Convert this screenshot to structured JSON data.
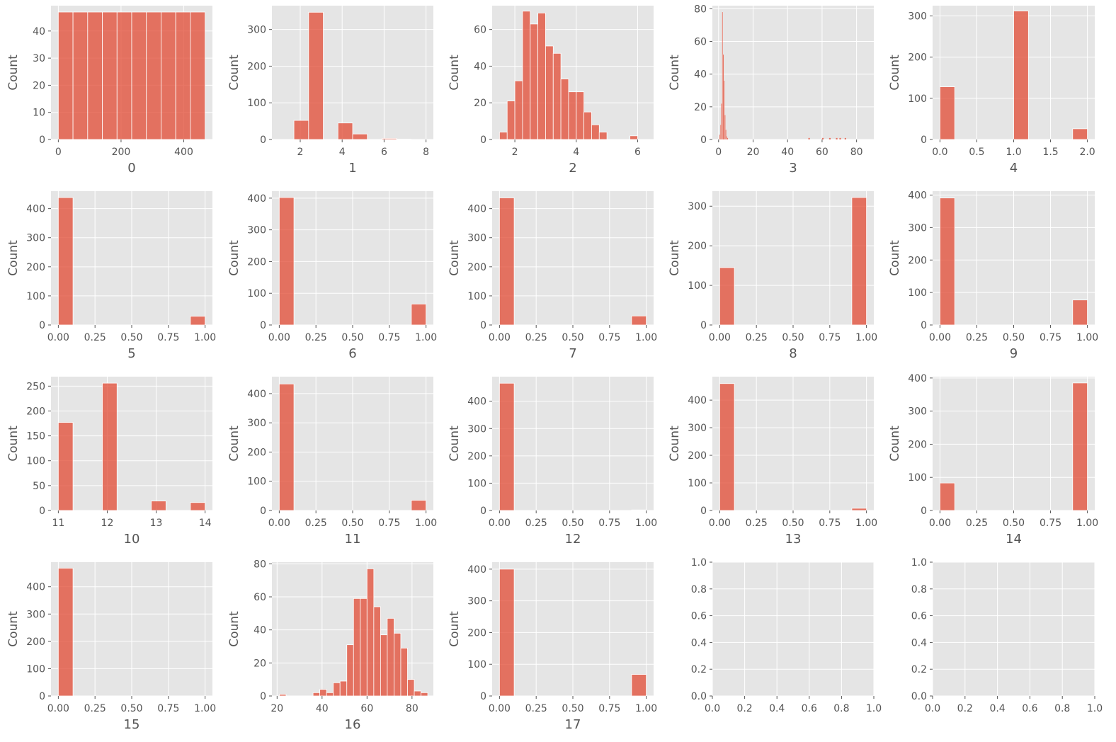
{
  "chart_data": [
    {
      "type": "bar",
      "xlabel": "0",
      "ylabel": "Count",
      "xlim": [
        -23.4,
        491.4
      ],
      "ylim": [
        0,
        49.35
      ],
      "xticks": [
        0,
        200,
        400
      ],
      "yticks": [
        0,
        10,
        20,
        30,
        40
      ],
      "bar_color": "#E24A33",
      "grid": true,
      "bins": [
        [
          0,
          46.8,
          47
        ],
        [
          46.8,
          93.6,
          47
        ],
        [
          93.6,
          140.4,
          47
        ],
        [
          140.4,
          187.2,
          47
        ],
        [
          187.2,
          234,
          47
        ],
        [
          234,
          280.8,
          47
        ],
        [
          280.8,
          327.6,
          47
        ],
        [
          327.6,
          374.4,
          47
        ],
        [
          374.4,
          421.2,
          47
        ],
        [
          421.2,
          468,
          47
        ]
      ]
    },
    {
      "type": "bar",
      "xlabel": "1",
      "ylabel": "Count",
      "xlim": [
        0.65,
        8.35
      ],
      "ylim": [
        0,
        365
      ],
      "xticks": [
        2,
        4,
        6,
        8
      ],
      "yticks": [
        0,
        100,
        200,
        300
      ],
      "bar_color": "#E24A33",
      "grid": true,
      "bins": [
        [
          1.0,
          1.7,
          0
        ],
        [
          1.7,
          2.4,
          52
        ],
        [
          2.4,
          3.1,
          347
        ],
        [
          3.1,
          3.8,
          0
        ],
        [
          3.8,
          4.5,
          45
        ],
        [
          4.5,
          5.2,
          15
        ],
        [
          5.2,
          5.9,
          0
        ],
        [
          5.9,
          6.6,
          3
        ],
        [
          6.6,
          7.3,
          1
        ],
        [
          7.3,
          8.0,
          0
        ]
      ]
    },
    {
      "type": "bar",
      "xlabel": "2",
      "ylabel": "Count",
      "xlim": [
        1.26,
        6.52
      ],
      "ylim": [
        0,
        73
      ],
      "xticks": [
        2,
        4,
        6
      ],
      "yticks": [
        0,
        20,
        40,
        60
      ],
      "bar_color": "#E24A33",
      "grid": true,
      "bins": [
        [
          1.5,
          1.75,
          4
        ],
        [
          1.75,
          2.0,
          21
        ],
        [
          2.0,
          2.25,
          32
        ],
        [
          2.25,
          2.5,
          70
        ],
        [
          2.5,
          2.75,
          63
        ],
        [
          2.75,
          3.0,
          69
        ],
        [
          3.0,
          3.25,
          51
        ],
        [
          3.25,
          3.5,
          47
        ],
        [
          3.5,
          3.75,
          33
        ],
        [
          3.75,
          4.0,
          26
        ],
        [
          4.0,
          4.25,
          26
        ],
        [
          4.25,
          4.5,
          15
        ],
        [
          4.5,
          4.75,
          8
        ],
        [
          4.75,
          5.0,
          4
        ],
        [
          5.0,
          5.25,
          0
        ],
        [
          5.25,
          5.5,
          0
        ],
        [
          5.5,
          5.75,
          0
        ],
        [
          5.75,
          6.0,
          2
        ]
      ]
    },
    {
      "type": "bar",
      "xlabel": "3",
      "ylabel": "Count",
      "xlim": [
        -3.6,
        90
      ],
      "ylim": [
        0,
        81.9
      ],
      "xticks": [
        0,
        20,
        40,
        60,
        80
      ],
      "yticks": [
        0,
        20,
        40,
        60,
        80
      ],
      "bar_color": "#E24A33",
      "grid": true,
      "bins": [
        [
          0.5,
          1.0,
          3
        ],
        [
          1.0,
          1.5,
          9
        ],
        [
          1.5,
          2.0,
          22
        ],
        [
          2.0,
          2.5,
          78
        ],
        [
          2.5,
          3.0,
          52
        ],
        [
          3.0,
          3.5,
          36
        ],
        [
          3.5,
          4.0,
          15
        ],
        [
          4.0,
          4.5,
          6
        ],
        [
          4.5,
          5.0,
          2
        ],
        [
          5.0,
          5.5,
          1
        ],
        [
          52,
          53,
          1
        ],
        [
          60,
          61,
          1
        ],
        [
          64,
          65,
          1
        ],
        [
          68,
          69,
          1
        ],
        [
          70,
          71,
          1
        ],
        [
          73,
          74,
          1
        ]
      ]
    },
    {
      "type": "bar",
      "xlabel": "4",
      "ylabel": "Count",
      "xlim": [
        -0.1,
        2.1
      ],
      "ylim": [
        0,
        325
      ],
      "xticks": [
        "0.0",
        "0.5",
        "1.0",
        "1.5",
        "2.0"
      ],
      "xtick_values": [
        0,
        0.5,
        1,
        1.5,
        2
      ],
      "yticks": [
        0,
        100,
        200,
        300
      ],
      "bar_color": "#E24A33",
      "grid": true,
      "bins": [
        [
          0,
          0.2,
          128
        ],
        [
          1.0,
          1.2,
          312
        ],
        [
          1.8,
          2.0,
          26
        ]
      ]
    },
    {
      "type": "bar",
      "xlabel": "5",
      "ylabel": "Count",
      "xlim": [
        -0.05,
        1.05
      ],
      "ylim": [
        0,
        460
      ],
      "xticks": [
        "0.00",
        "0.25",
        "0.50",
        "0.75",
        "1.00"
      ],
      "xtick_values": [
        0,
        0.25,
        0.5,
        0.75,
        1
      ],
      "yticks": [
        0,
        100,
        200,
        300,
        400
      ],
      "bar_color": "#E24A33",
      "grid": true,
      "bins": [
        [
          0,
          0.1,
          438
        ],
        [
          0.9,
          1.0,
          30
        ]
      ]
    },
    {
      "type": "bar",
      "xlabel": "6",
      "ylabel": "Count",
      "xlim": [
        -0.05,
        1.05
      ],
      "ylim": [
        0,
        422
      ],
      "xticks": [
        "0.00",
        "0.25",
        "0.50",
        "0.75",
        "1.00"
      ],
      "xtick_values": [
        0,
        0.25,
        0.5,
        0.75,
        1
      ],
      "yticks": [
        0,
        100,
        200,
        300,
        400
      ],
      "bar_color": "#E24A33",
      "grid": true,
      "bins": [
        [
          0,
          0.1,
          402
        ],
        [
          0.9,
          1.0,
          66
        ]
      ]
    },
    {
      "type": "bar",
      "xlabel": "7",
      "ylabel": "Count",
      "xlim": [
        -0.05,
        1.05
      ],
      "ylim": [
        0,
        460
      ],
      "xticks": [
        "0.00",
        "0.25",
        "0.50",
        "0.75",
        "1.00"
      ],
      "xtick_values": [
        0,
        0.25,
        0.5,
        0.75,
        1
      ],
      "yticks": [
        0,
        100,
        200,
        300,
        400
      ],
      "bar_color": "#E24A33",
      "grid": true,
      "bins": [
        [
          0,
          0.1,
          437
        ],
        [
          0.9,
          1.0,
          31
        ]
      ]
    },
    {
      "type": "bar",
      "xlabel": "8",
      "ylabel": "Count",
      "xlim": [
        -0.05,
        1.05
      ],
      "ylim": [
        0,
        338
      ],
      "xticks": [
        "0.00",
        "0.25",
        "0.50",
        "0.75",
        "1.00"
      ],
      "xtick_values": [
        0,
        0.25,
        0.5,
        0.75,
        1
      ],
      "yticks": [
        0,
        100,
        200,
        300
      ],
      "bar_color": "#E24A33",
      "grid": true,
      "bins": [
        [
          0,
          0.1,
          145
        ],
        [
          0.9,
          1.0,
          322
        ]
      ]
    },
    {
      "type": "bar",
      "xlabel": "9",
      "ylabel": "Count",
      "xlim": [
        -0.05,
        1.05
      ],
      "ylim": [
        0,
        412
      ],
      "xticks": [
        "0.00",
        "0.25",
        "0.50",
        "0.75",
        "1.00"
      ],
      "xtick_values": [
        0,
        0.25,
        0.5,
        0.75,
        1
      ],
      "yticks": [
        0,
        100,
        200,
        300,
        400
      ],
      "bar_color": "#E24A33",
      "grid": true,
      "bins": [
        [
          0,
          0.1,
          391
        ],
        [
          0.9,
          1.0,
          77
        ]
      ]
    },
    {
      "type": "bar",
      "xlabel": "10",
      "ylabel": "Count",
      "xlim": [
        10.85,
        14.15
      ],
      "ylim": [
        0,
        269
      ],
      "xticks": [
        11,
        12,
        13,
        14
      ],
      "yticks": [
        0,
        50,
        100,
        150,
        200,
        250
      ],
      "bar_color": "#E24A33",
      "grid": true,
      "bins": [
        [
          11.0,
          11.3,
          177
        ],
        [
          11.9,
          12.2,
          256
        ],
        [
          12.9,
          13.2,
          19
        ],
        [
          13.7,
          14.0,
          16
        ]
      ]
    },
    {
      "type": "bar",
      "xlabel": "11",
      "ylabel": "Count",
      "xlim": [
        -0.05,
        1.05
      ],
      "ylim": [
        0,
        458
      ],
      "xticks": [
        "0.00",
        "0.25",
        "0.50",
        "0.75",
        "1.00"
      ],
      "xtick_values": [
        0,
        0.25,
        0.5,
        0.75,
        1
      ],
      "yticks": [
        0,
        100,
        200,
        300,
        400
      ],
      "bar_color": "#E24A33",
      "grid": true,
      "bins": [
        [
          0,
          0.1,
          433
        ],
        [
          0.9,
          1.0,
          35
        ]
      ]
    },
    {
      "type": "bar",
      "xlabel": "12",
      "ylabel": "Count",
      "xlim": [
        -0.05,
        1.05
      ],
      "ylim": [
        0,
        490
      ],
      "xticks": [
        "0.00",
        "0.25",
        "0.50",
        "0.75",
        "1.00"
      ],
      "xtick_values": [
        0,
        0.25,
        0.5,
        0.75,
        1
      ],
      "yticks": [
        0,
        100,
        200,
        300,
        400
      ],
      "bar_color": "#E24A33",
      "grid": true,
      "bins": [
        [
          0,
          0.1,
          466
        ],
        [
          0.9,
          1.0,
          2
        ]
      ]
    },
    {
      "type": "bar",
      "xlabel": "13",
      "ylabel": "Count",
      "xlim": [
        -0.05,
        1.05
      ],
      "ylim": [
        0,
        485
      ],
      "xticks": [
        "0.00",
        "0.25",
        "0.50",
        "0.75",
        "1.00"
      ],
      "xtick_values": [
        0,
        0.25,
        0.5,
        0.75,
        1
      ],
      "yticks": [
        0,
        100,
        200,
        300,
        400
      ],
      "bar_color": "#E24A33",
      "grid": true,
      "bins": [
        [
          0,
          0.1,
          460
        ],
        [
          0.9,
          1.0,
          8
        ]
      ]
    },
    {
      "type": "bar",
      "xlabel": "14",
      "ylabel": "Count",
      "xlim": [
        -0.05,
        1.05
      ],
      "ylim": [
        0,
        404
      ],
      "xticks": [
        "0.00",
        "0.25",
        "0.50",
        "0.75",
        "1.00"
      ],
      "xtick_values": [
        0,
        0.25,
        0.5,
        0.75,
        1
      ],
      "yticks": [
        0,
        100,
        200,
        300,
        400
      ],
      "bar_color": "#E24A33",
      "grid": true,
      "bins": [
        [
          0,
          0.1,
          83
        ],
        [
          0.9,
          1.0,
          385
        ]
      ]
    },
    {
      "type": "bar",
      "xlabel": "15",
      "ylabel": "Count",
      "xlim": [
        -0.05,
        1.05
      ],
      "ylim": [
        0,
        490
      ],
      "xticks": [
        "0.00",
        "0.25",
        "0.50",
        "0.75",
        "1.00"
      ],
      "xtick_values": [
        0,
        0.25,
        0.5,
        0.75,
        1
      ],
      "yticks": [
        0,
        100,
        200,
        300,
        400
      ],
      "bar_color": "#E24A33",
      "grid": true,
      "bins": [
        [
          0,
          0.1,
          468
        ]
      ]
    },
    {
      "type": "bar",
      "xlabel": "16",
      "ylabel": "Count",
      "xlim": [
        17.7,
        89.5
      ],
      "ylim": [
        0,
        81
      ],
      "xticks": [
        20,
        40,
        60,
        80
      ],
      "yticks": [
        0,
        20,
        40,
        60,
        80
      ],
      "bar_color": "#E24A33",
      "grid": true,
      "bins": [
        [
          21,
          24,
          1
        ],
        [
          24,
          27,
          0
        ],
        [
          27,
          30,
          0
        ],
        [
          30,
          33,
          0
        ],
        [
          33,
          36,
          0
        ],
        [
          36,
          39,
          2
        ],
        [
          39,
          42,
          4
        ],
        [
          42,
          45,
          2
        ],
        [
          45,
          48,
          8
        ],
        [
          48,
          51,
          9
        ],
        [
          51,
          54,
          31
        ],
        [
          54,
          57,
          59
        ],
        [
          57,
          60,
          59
        ],
        [
          60,
          63,
          77
        ],
        [
          63,
          66,
          54
        ],
        [
          66,
          69,
          37
        ],
        [
          69,
          72,
          47
        ],
        [
          72,
          75,
          38
        ],
        [
          75,
          78,
          29
        ],
        [
          78,
          81,
          10
        ],
        [
          81,
          84,
          3
        ],
        [
          84,
          87,
          2
        ]
      ]
    },
    {
      "type": "bar",
      "xlabel": "17",
      "ylabel": "Count",
      "xlim": [
        -0.05,
        1.05
      ],
      "ylim": [
        0,
        422
      ],
      "xticks": [
        "0.00",
        "0.25",
        "0.50",
        "0.75",
        "1.00"
      ],
      "xtick_values": [
        0,
        0.25,
        0.5,
        0.75,
        1
      ],
      "yticks": [
        0,
        100,
        200,
        300,
        400
      ],
      "bar_color": "#E24A33",
      "grid": true,
      "bins": [
        [
          0,
          0.1,
          400
        ],
        [
          0.9,
          1.0,
          68
        ]
      ]
    },
    {
      "type": "bar",
      "xlabel": "",
      "ylabel": "",
      "xlim": [
        0,
        1
      ],
      "ylim": [
        0,
        1
      ],
      "xticks": [
        "0.0",
        "0.2",
        "0.4",
        "0.6",
        "0.8",
        "1.0"
      ],
      "xtick_values": [
        0,
        0.2,
        0.4,
        0.6,
        0.8,
        1
      ],
      "yticks": [
        "0.0",
        "0.2",
        "0.4",
        "0.6",
        "0.8",
        "1.0"
      ],
      "ytick_values": [
        0,
        0.2,
        0.4,
        0.6,
        0.8,
        1
      ],
      "grid": true,
      "bins": []
    },
    {
      "type": "bar",
      "xlabel": "",
      "ylabel": "",
      "xlim": [
        0,
        1
      ],
      "ylim": [
        0,
        1
      ],
      "xticks": [
        "0.0",
        "0.2",
        "0.4",
        "0.6",
        "0.8",
        "1.0"
      ],
      "xtick_values": [
        0,
        0.2,
        0.4,
        0.6,
        0.8,
        1
      ],
      "yticks": [
        "0.0",
        "0.2",
        "0.4",
        "0.6",
        "0.8",
        "1.0"
      ],
      "ytick_values": [
        0,
        0.2,
        0.4,
        0.6,
        0.8,
        1
      ],
      "grid": true,
      "bins": []
    }
  ]
}
